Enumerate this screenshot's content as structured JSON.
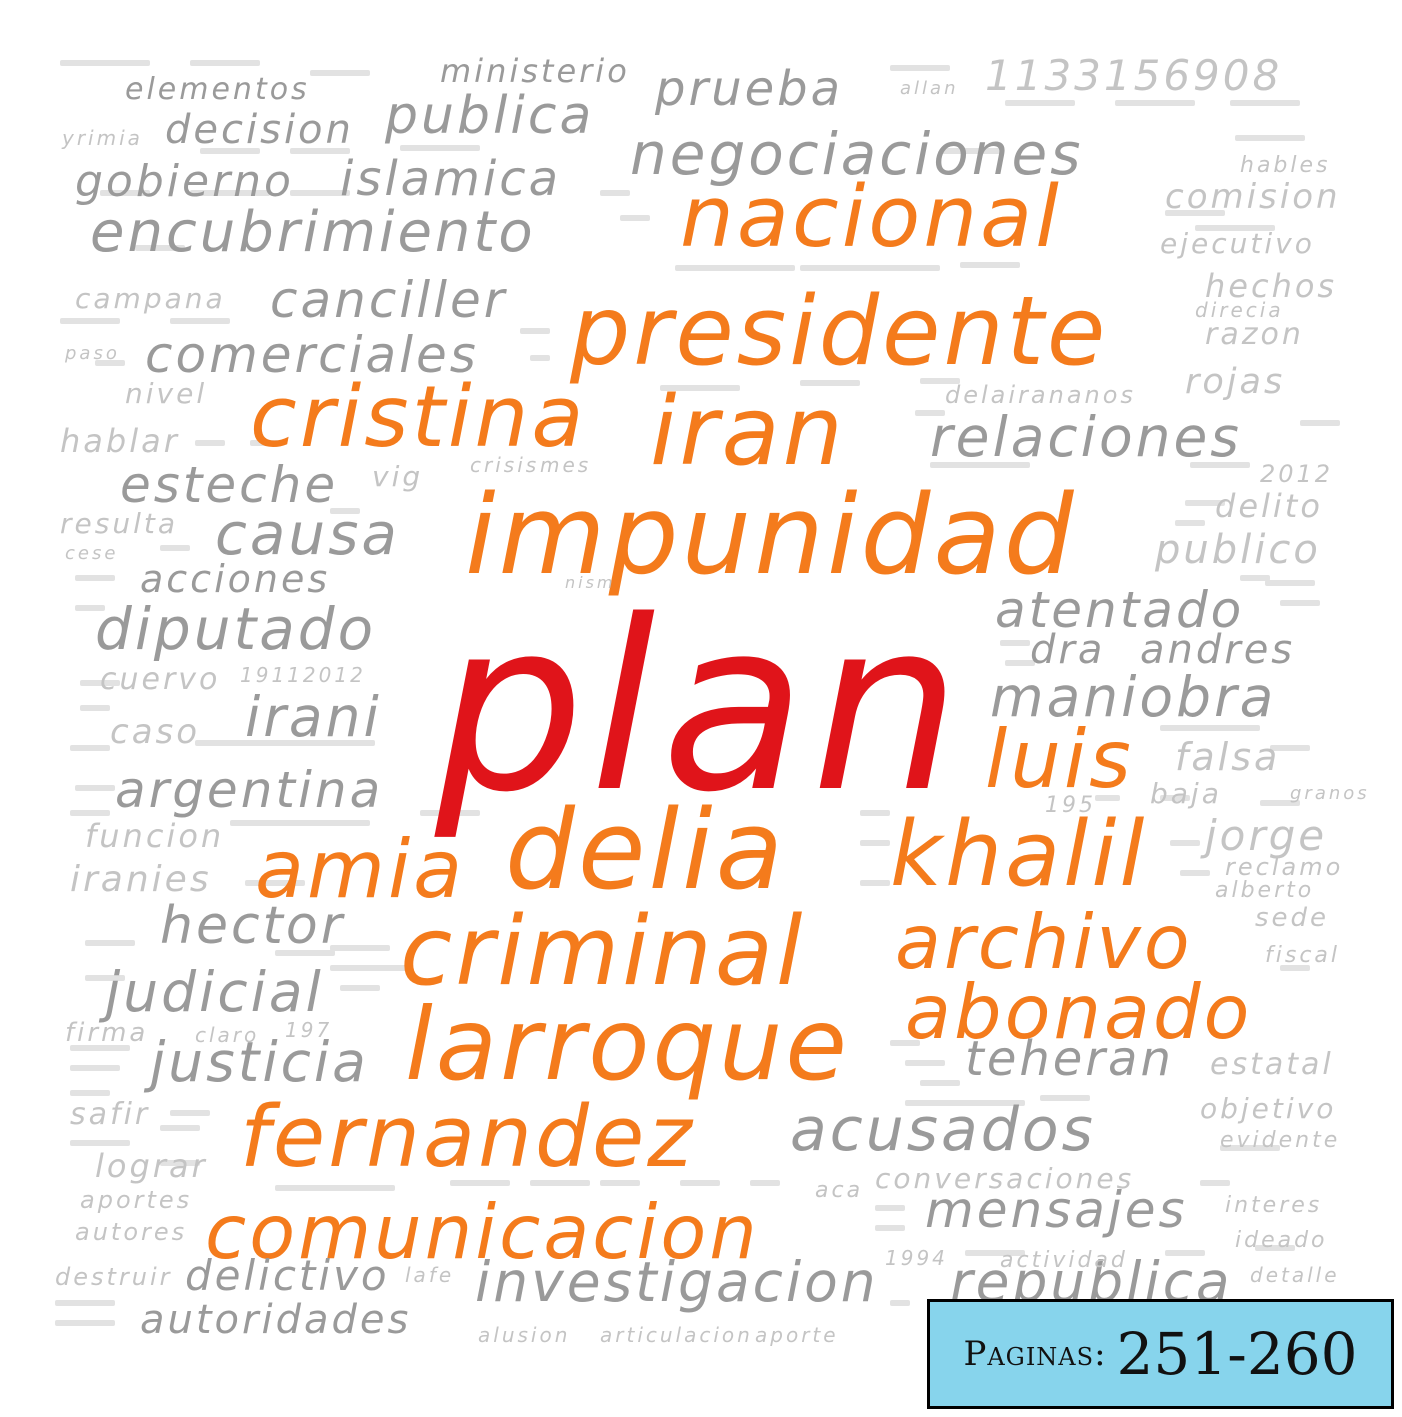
{
  "wordcloud": {
    "colors": {
      "primary": "#e0141a",
      "secondary": "#f47b1c",
      "tertiary": "#9a9a9a",
      "faint": "#c4c4c4"
    },
    "words": [
      {
        "text": "plan",
        "tier": "primary"
      },
      {
        "text": "impunidad",
        "tier": "secondary"
      },
      {
        "text": "presidente",
        "tier": "secondary"
      },
      {
        "text": "nacional",
        "tier": "secondary"
      },
      {
        "text": "cristina",
        "tier": "secondary"
      },
      {
        "text": "iran",
        "tier": "secondary"
      },
      {
        "text": "delia",
        "tier": "secondary"
      },
      {
        "text": "khalil",
        "tier": "secondary"
      },
      {
        "text": "amia",
        "tier": "secondary"
      },
      {
        "text": "luis",
        "tier": "secondary"
      },
      {
        "text": "criminal",
        "tier": "secondary"
      },
      {
        "text": "archivo",
        "tier": "secondary"
      },
      {
        "text": "abonado",
        "tier": "secondary"
      },
      {
        "text": "larroque",
        "tier": "secondary"
      },
      {
        "text": "fernandez",
        "tier": "secondary"
      },
      {
        "text": "comunicacion",
        "tier": "secondary"
      },
      {
        "text": "negociaciones",
        "tier": "tertiary"
      },
      {
        "text": "encubrimiento",
        "tier": "tertiary"
      },
      {
        "text": "publica",
        "tier": "tertiary"
      },
      {
        "text": "decision",
        "tier": "tertiary"
      },
      {
        "text": "gobierno",
        "tier": "tertiary"
      },
      {
        "text": "islamica",
        "tier": "tertiary"
      },
      {
        "text": "prueba",
        "tier": "tertiary"
      },
      {
        "text": "1133156908",
        "tier": "tertiary"
      },
      {
        "text": "elementos",
        "tier": "tertiary"
      },
      {
        "text": "ministerio",
        "tier": "tertiary"
      },
      {
        "text": "canciller",
        "tier": "tertiary"
      },
      {
        "text": "comerciales",
        "tier": "tertiary"
      },
      {
        "text": "relaciones",
        "tier": "tertiary"
      },
      {
        "text": "causa",
        "tier": "tertiary"
      },
      {
        "text": "esteche",
        "tier": "tertiary"
      },
      {
        "text": "diputado",
        "tier": "tertiary"
      },
      {
        "text": "atentado",
        "tier": "tertiary"
      },
      {
        "text": "maniobra",
        "tier": "tertiary"
      },
      {
        "text": "irani",
        "tier": "tertiary"
      },
      {
        "text": "argentina",
        "tier": "tertiary"
      },
      {
        "text": "acusados",
        "tier": "tertiary"
      },
      {
        "text": "investigacion",
        "tier": "tertiary"
      },
      {
        "text": "justicia",
        "tier": "tertiary"
      },
      {
        "text": "judicial",
        "tier": "tertiary"
      },
      {
        "text": "hector",
        "tier": "tertiary"
      },
      {
        "text": "teheran",
        "tier": "tertiary"
      },
      {
        "text": "mensajes",
        "tier": "tertiary"
      },
      {
        "text": "autoridades",
        "tier": "tertiary"
      },
      {
        "text": "delictivo",
        "tier": "tertiary"
      },
      {
        "text": "republica",
        "tier": "tertiary"
      },
      {
        "text": "publico",
        "tier": "tertiary"
      },
      {
        "text": "acciones",
        "tier": "tertiary"
      },
      {
        "text": "dra",
        "tier": "tertiary"
      },
      {
        "text": "andres",
        "tier": "tertiary"
      },
      {
        "text": "jorge",
        "tier": "tertiary"
      },
      {
        "text": "falsa",
        "tier": "tertiary"
      },
      {
        "text": "comision",
        "tier": "faint"
      },
      {
        "text": "ejecutivo",
        "tier": "faint"
      },
      {
        "text": "hechos",
        "tier": "faint"
      },
      {
        "text": "razon",
        "tier": "faint"
      },
      {
        "text": "rojas",
        "tier": "faint"
      },
      {
        "text": "delito",
        "tier": "faint"
      },
      {
        "text": "campana",
        "tier": "faint"
      },
      {
        "text": "nivel",
        "tier": "faint"
      },
      {
        "text": "hablar",
        "tier": "faint"
      },
      {
        "text": "resulta",
        "tier": "faint"
      },
      {
        "text": "cuervo",
        "tier": "faint"
      },
      {
        "text": "caso",
        "tier": "faint"
      },
      {
        "text": "funcion",
        "tier": "faint"
      },
      {
        "text": "iranies",
        "tier": "faint"
      },
      {
        "text": "firma",
        "tier": "faint"
      },
      {
        "text": "safir",
        "tier": "faint"
      },
      {
        "text": "lograr",
        "tier": "faint"
      },
      {
        "text": "aportes",
        "tier": "faint"
      },
      {
        "text": "autores",
        "tier": "faint"
      },
      {
        "text": "destruir",
        "tier": "faint"
      },
      {
        "text": "sede",
        "tier": "faint"
      },
      {
        "text": "fiscal",
        "tier": "faint"
      },
      {
        "text": "estatal",
        "tier": "faint"
      },
      {
        "text": "objetivo",
        "tier": "faint"
      },
      {
        "text": "evidente",
        "tier": "faint"
      },
      {
        "text": "conversaciones",
        "tier": "faint"
      },
      {
        "text": "actividad",
        "tier": "faint"
      },
      {
        "text": "baja",
        "tier": "faint"
      },
      {
        "text": "alberto",
        "tier": "faint"
      },
      {
        "text": "reclamo",
        "tier": "faint"
      },
      {
        "text": "interes",
        "tier": "faint"
      },
      {
        "text": "ideado",
        "tier": "faint"
      },
      {
        "text": "detalle",
        "tier": "faint"
      },
      {
        "text": "2012",
        "tier": "faint"
      },
      {
        "text": "crisis",
        "tier": "faint"
      },
      {
        "text": "mes",
        "tier": "faint"
      },
      {
        "text": "vig",
        "tier": "faint"
      },
      {
        "text": "claro",
        "tier": "faint"
      },
      {
        "text": "197",
        "tier": "faint"
      },
      {
        "text": "1994",
        "tier": "faint"
      },
      {
        "text": "alusion",
        "tier": "faint"
      },
      {
        "text": "articulacion",
        "tier": "faint"
      },
      {
        "text": "aporte",
        "tier": "faint"
      },
      {
        "text": "aca",
        "tier": "faint"
      },
      {
        "text": "19112012",
        "tier": "faint"
      },
      {
        "text": "195",
        "tier": "faint"
      },
      {
        "text": "yrimia",
        "tier": "faint"
      },
      {
        "text": "delairananos",
        "tier": "faint"
      },
      {
        "text": "allan",
        "tier": "faint"
      },
      {
        "text": "hables",
        "tier": "faint"
      },
      {
        "text": "cese",
        "tier": "faint"
      },
      {
        "text": "nism",
        "tier": "faint"
      },
      {
        "text": "paso",
        "tier": "faint"
      },
      {
        "text": "direcia",
        "tier": "faint"
      },
      {
        "text": "granos",
        "tier": "faint"
      },
      {
        "text": "lafe",
        "tier": "faint"
      }
    ]
  },
  "badge": {
    "label": "Paginas:",
    "value": "251-260"
  }
}
